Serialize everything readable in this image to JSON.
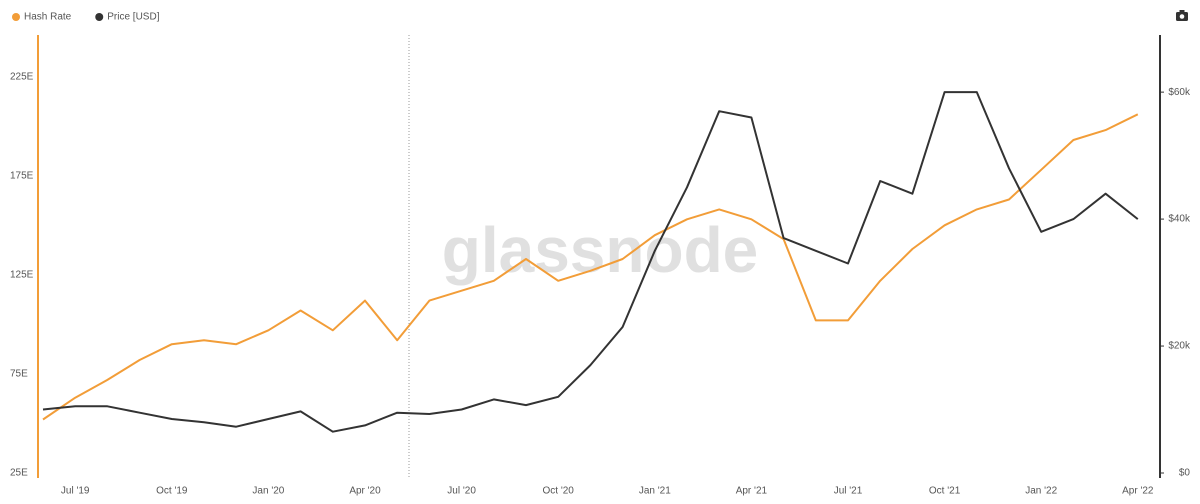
{
  "chart_data": {
    "type": "line",
    "watermark": "glassnode",
    "categories": [
      null,
      "Jul '19",
      null,
      null,
      "Oct '19",
      null,
      null,
      "Jan '20",
      null,
      null,
      "Apr '20",
      null,
      null,
      "Jul '20",
      null,
      null,
      "Oct '20",
      null,
      null,
      "Jan '21",
      null,
      null,
      "Apr '21",
      null,
      null,
      "Jul '21",
      null,
      null,
      "Oct '21",
      null,
      null,
      "Jan '22",
      null,
      null,
      "Apr '22"
    ],
    "series": [
      {
        "name": "Hash Rate",
        "color": "#f29d38",
        "axis": "y",
        "values": [
          52,
          63,
          72,
          82,
          90,
          92,
          90,
          97,
          107,
          97,
          112,
          92,
          112,
          117,
          122,
          133,
          122,
          127,
          133,
          145,
          153,
          158,
          153,
          143,
          102,
          102,
          122,
          138,
          150,
          158,
          163,
          178,
          193,
          198,
          206
        ]
      },
      {
        "name": "Price [USD]",
        "color": "#333333",
        "axis": "y2",
        "values": [
          10000,
          10500,
          10500,
          9500,
          8500,
          8000,
          7300,
          8500,
          9700,
          6500,
          7500,
          9500,
          9300,
          10000,
          11600,
          10700,
          12000,
          17000,
          23000,
          35000,
          45000,
          57000,
          56000,
          37000,
          35000,
          33000,
          46000,
          44000,
          60000,
          60000,
          48000,
          38000,
          40000,
          44000,
          40000
        ]
      }
    ],
    "ylim": [
      25,
      246
    ],
    "yticks": [
      {
        "value": 25,
        "label": "25E"
      },
      {
        "value": 75,
        "label": "75E"
      },
      {
        "value": 125,
        "label": "125E"
      },
      {
        "value": 175,
        "label": "175E"
      },
      {
        "value": 225,
        "label": "225E"
      }
    ],
    "y2lim": [
      0,
      69000
    ],
    "y2ticks": [
      {
        "value": 0,
        "label": "$0"
      },
      {
        "value": 20000,
        "label": "$20k"
      },
      {
        "value": 40000,
        "label": "$40k"
      },
      {
        "value": 60000,
        "label": "$60k"
      }
    ],
    "legend": "top-left"
  }
}
